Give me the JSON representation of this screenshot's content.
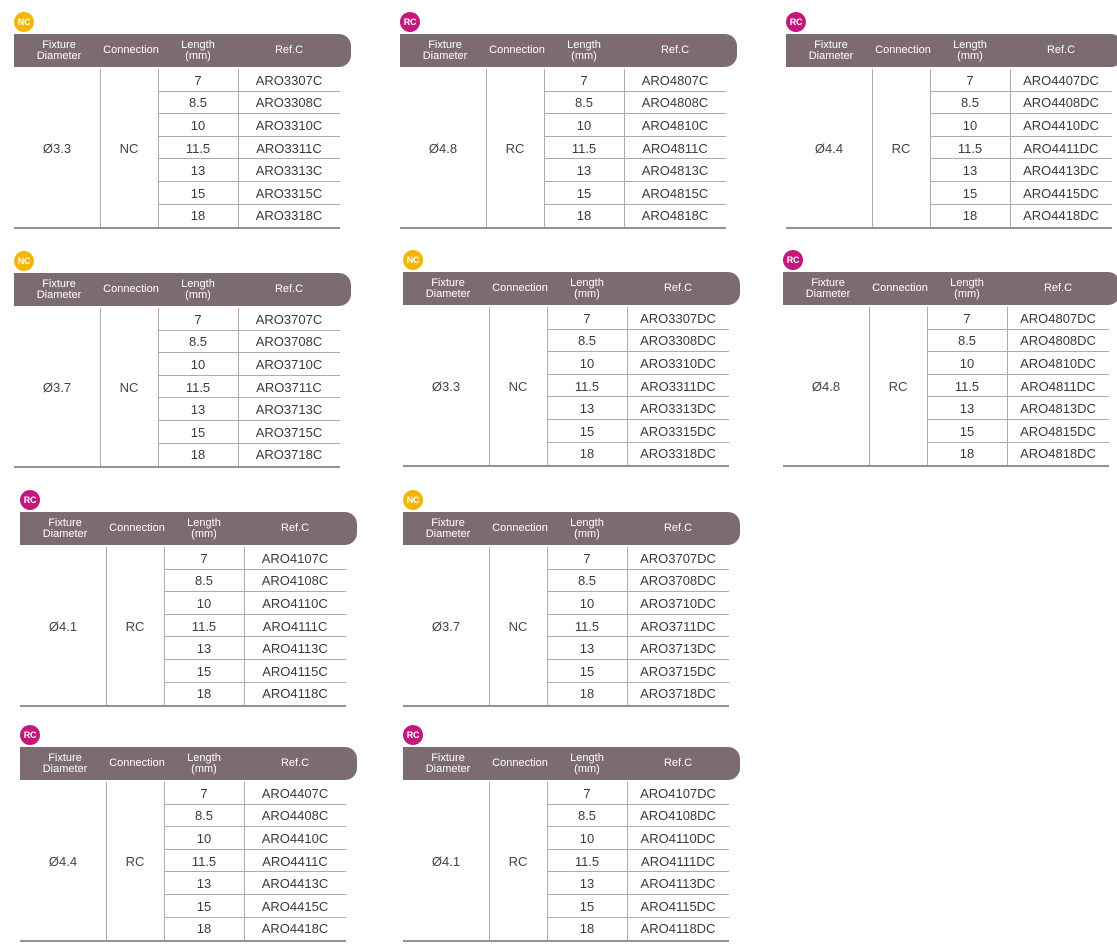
{
  "headers": {
    "fixture": "Fixture\nDiameter",
    "connection": "Connection",
    "length": "Length\n(mm)",
    "ref": "Ref.C"
  },
  "colors": {
    "nc_badge": "#f2b705",
    "rc_badge": "#c2177c",
    "header_bg": "#7d6c6f"
  },
  "tables": [
    {
      "badge": "NC",
      "diameter": "Ø3.3",
      "connection": "NC",
      "rows": [
        [
          "7",
          "ARO3307C"
        ],
        [
          "8.5",
          "ARO3308C"
        ],
        [
          "10",
          "ARO3310C"
        ],
        [
          "11.5",
          "ARO3311C"
        ],
        [
          "13",
          "ARO3313C"
        ],
        [
          "15",
          "ARO3315C"
        ],
        [
          "18",
          "ARO3318C"
        ]
      ]
    },
    {
      "badge": "RC",
      "diameter": "Ø4.8",
      "connection": "RC",
      "rows": [
        [
          "7",
          "ARO4807C"
        ],
        [
          "8.5",
          "ARO4808C"
        ],
        [
          "10",
          "ARO4810C"
        ],
        [
          "11.5",
          "ARO4811C"
        ],
        [
          "13",
          "ARO4813C"
        ],
        [
          "15",
          "ARO4815C"
        ],
        [
          "18",
          "ARO4818C"
        ]
      ]
    },
    {
      "badge": "RC",
      "diameter": "Ø4.4",
      "connection": "RC",
      "rows": [
        [
          "7",
          "ARO4407DC"
        ],
        [
          "8.5",
          "ARO4408DC"
        ],
        [
          "10",
          "ARO4410DC"
        ],
        [
          "11.5",
          "ARO4411DC"
        ],
        [
          "13",
          "ARO4413DC"
        ],
        [
          "15",
          "ARO4415DC"
        ],
        [
          "18",
          "ARO4418DC"
        ]
      ]
    },
    {
      "badge": "NC",
      "diameter": "Ø3.7",
      "connection": "NC",
      "rows": [
        [
          "7",
          "ARO3707C"
        ],
        [
          "8.5",
          "ARO3708C"
        ],
        [
          "10",
          "ARO3710C"
        ],
        [
          "11.5",
          "ARO3711C"
        ],
        [
          "13",
          "ARO3713C"
        ],
        [
          "15",
          "ARO3715C"
        ],
        [
          "18",
          "ARO3718C"
        ]
      ]
    },
    {
      "badge": "NC",
      "diameter": "Ø3.3",
      "connection": "NC",
      "rows": [
        [
          "7",
          "ARO3307DC"
        ],
        [
          "8.5",
          "ARO3308DC"
        ],
        [
          "10",
          "ARO3310DC"
        ],
        [
          "11.5",
          "ARO3311DC"
        ],
        [
          "13",
          "ARO3313DC"
        ],
        [
          "15",
          "ARO3315DC"
        ],
        [
          "18",
          "ARO3318DC"
        ]
      ]
    },
    {
      "badge": "RC",
      "diameter": "Ø4.8",
      "connection": "RC",
      "rows": [
        [
          "7",
          "ARO4807DC"
        ],
        [
          "8.5",
          "ARO4808DC"
        ],
        [
          "10",
          "ARO4810DC"
        ],
        [
          "11.5",
          "ARO4811DC"
        ],
        [
          "13",
          "ARO4813DC"
        ],
        [
          "15",
          "ARO4815DC"
        ],
        [
          "18",
          "ARO4818DC"
        ]
      ]
    },
    {
      "badge": "RC",
      "diameter": "Ø4.1",
      "connection": "RC",
      "rows": [
        [
          "7",
          "ARO4107C"
        ],
        [
          "8.5",
          "ARO4108C"
        ],
        [
          "10",
          "ARO4110C"
        ],
        [
          "11.5",
          "ARO4111C"
        ],
        [
          "13",
          "ARO4113C"
        ],
        [
          "15",
          "ARO4115C"
        ],
        [
          "18",
          "ARO4118C"
        ]
      ]
    },
    {
      "badge": "NC",
      "diameter": "Ø3.7",
      "connection": "NC",
      "rows": [
        [
          "7",
          "ARO3707DC"
        ],
        [
          "8.5",
          "ARO3708DC"
        ],
        [
          "10",
          "ARO3710DC"
        ],
        [
          "11.5",
          "ARO3711DC"
        ],
        [
          "13",
          "ARO3713DC"
        ],
        [
          "15",
          "ARO3715DC"
        ],
        [
          "18",
          "ARO3718DC"
        ]
      ]
    },
    {
      "badge": "RC",
      "diameter": "Ø4.4",
      "connection": "RC",
      "rows": [
        [
          "7",
          "ARO4407C"
        ],
        [
          "8.5",
          "ARO4408C"
        ],
        [
          "10",
          "ARO4410C"
        ],
        [
          "11.5",
          "ARO4411C"
        ],
        [
          "13",
          "ARO4413C"
        ],
        [
          "15",
          "ARO4415C"
        ],
        [
          "18",
          "ARO4418C"
        ]
      ]
    },
    {
      "badge": "RC",
      "diameter": "Ø4.1",
      "connection": "RC",
      "rows": [
        [
          "7",
          "ARO4107DC"
        ],
        [
          "8.5",
          "ARO4108DC"
        ],
        [
          "10",
          "ARO4110DC"
        ],
        [
          "11.5",
          "ARO4111DC"
        ],
        [
          "13",
          "ARO4113DC"
        ],
        [
          "15",
          "ARO4115DC"
        ],
        [
          "18",
          "ARO4118DC"
        ]
      ]
    }
  ]
}
